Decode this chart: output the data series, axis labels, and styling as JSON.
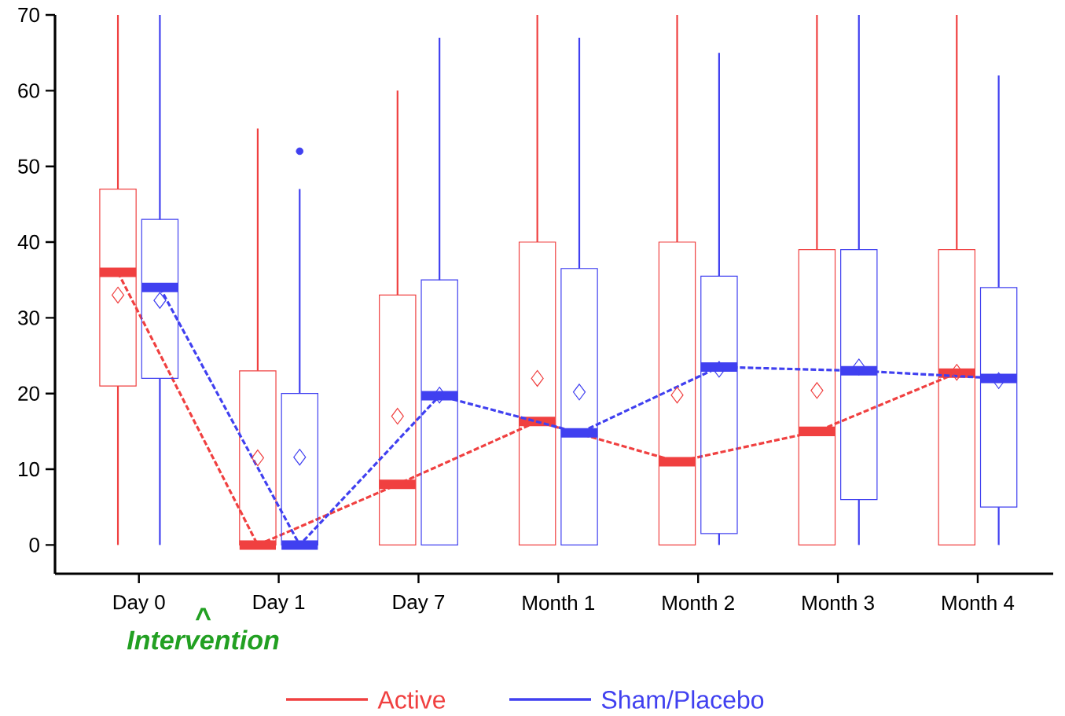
{
  "chart_data": {
    "type": "box",
    "categories": [
      "Day 0",
      "Day 1",
      "Day 7",
      "Month 1",
      "Month 2",
      "Month 3",
      "Month 4"
    ],
    "ylim": [
      -3.8,
      70
    ],
    "yticks": [
      0,
      10,
      20,
      30,
      40,
      50,
      60,
      70
    ],
    "legend": "bottom",
    "annotations": [
      "^",
      "Intervention"
    ],
    "series": [
      {
        "name": "Active",
        "color": "#f04040",
        "marker": "diamond",
        "boxes": [
          {
            "low": 0,
            "q1": 21,
            "median": 36,
            "q3": 47,
            "high": 70,
            "mean": 33
          },
          {
            "low": 0,
            "q1": 0,
            "median": 0,
            "q3": 23,
            "high": 55,
            "mean": 11.5
          },
          {
            "low": 0,
            "q1": 0,
            "median": 8,
            "q3": 33,
            "high": 60,
            "mean": 17
          },
          {
            "low": 0,
            "q1": 0,
            "median": 16.3,
            "q3": 40,
            "high": 70,
            "mean": 22
          },
          {
            "low": 0,
            "q1": 0,
            "median": 11,
            "q3": 40,
            "high": 70,
            "mean": 19.8
          },
          {
            "low": 0,
            "q1": 0,
            "median": 15,
            "q3": 39,
            "high": 70,
            "mean": 20.4
          },
          {
            "low": 0,
            "q1": 0,
            "median": 22.7,
            "q3": 39,
            "high": 70,
            "mean": 22.8
          }
        ]
      },
      {
        "name": "Sham/Placebo",
        "color": "#4040f0",
        "marker": "diamond",
        "boxes": [
          {
            "low": 0,
            "q1": 22,
            "median": 34,
            "q3": 43,
            "high": 70,
            "mean": 32.3
          },
          {
            "low": 0,
            "q1": 0,
            "median": 0,
            "q3": 20,
            "high": 47,
            "mean": 11.6,
            "outliers": [
              52
            ]
          },
          {
            "low": 0,
            "q1": 0,
            "median": 19.7,
            "q3": 35,
            "high": 67,
            "mean": 19.8
          },
          {
            "low": 0,
            "q1": 0,
            "median": 14.8,
            "q3": 36.5,
            "high": 67,
            "mean": 20.2
          },
          {
            "low": 0,
            "q1": 1.5,
            "median": 23.5,
            "q3": 35.5,
            "high": 65,
            "mean": 23.2
          },
          {
            "low": 0,
            "q1": 6,
            "median": 23,
            "q3": 39,
            "high": 70,
            "mean": 23.5
          },
          {
            "low": 0,
            "q1": 5,
            "median": 22,
            "q3": 34,
            "high": 62,
            "mean": 21.7
          }
        ]
      },
      {
        "type": "line",
        "color": "#f04040",
        "line_style": "dashed",
        "marker": "none",
        "values": [
          36,
          0,
          8,
          16.3,
          11,
          15,
          22.7
        ]
      },
      {
        "type": "line",
        "color": "#4040f0",
        "line_style": "dashed",
        "marker": "none",
        "values": [
          34,
          0,
          19.7,
          14.8,
          23.5,
          23,
          22
        ]
      }
    ]
  }
}
